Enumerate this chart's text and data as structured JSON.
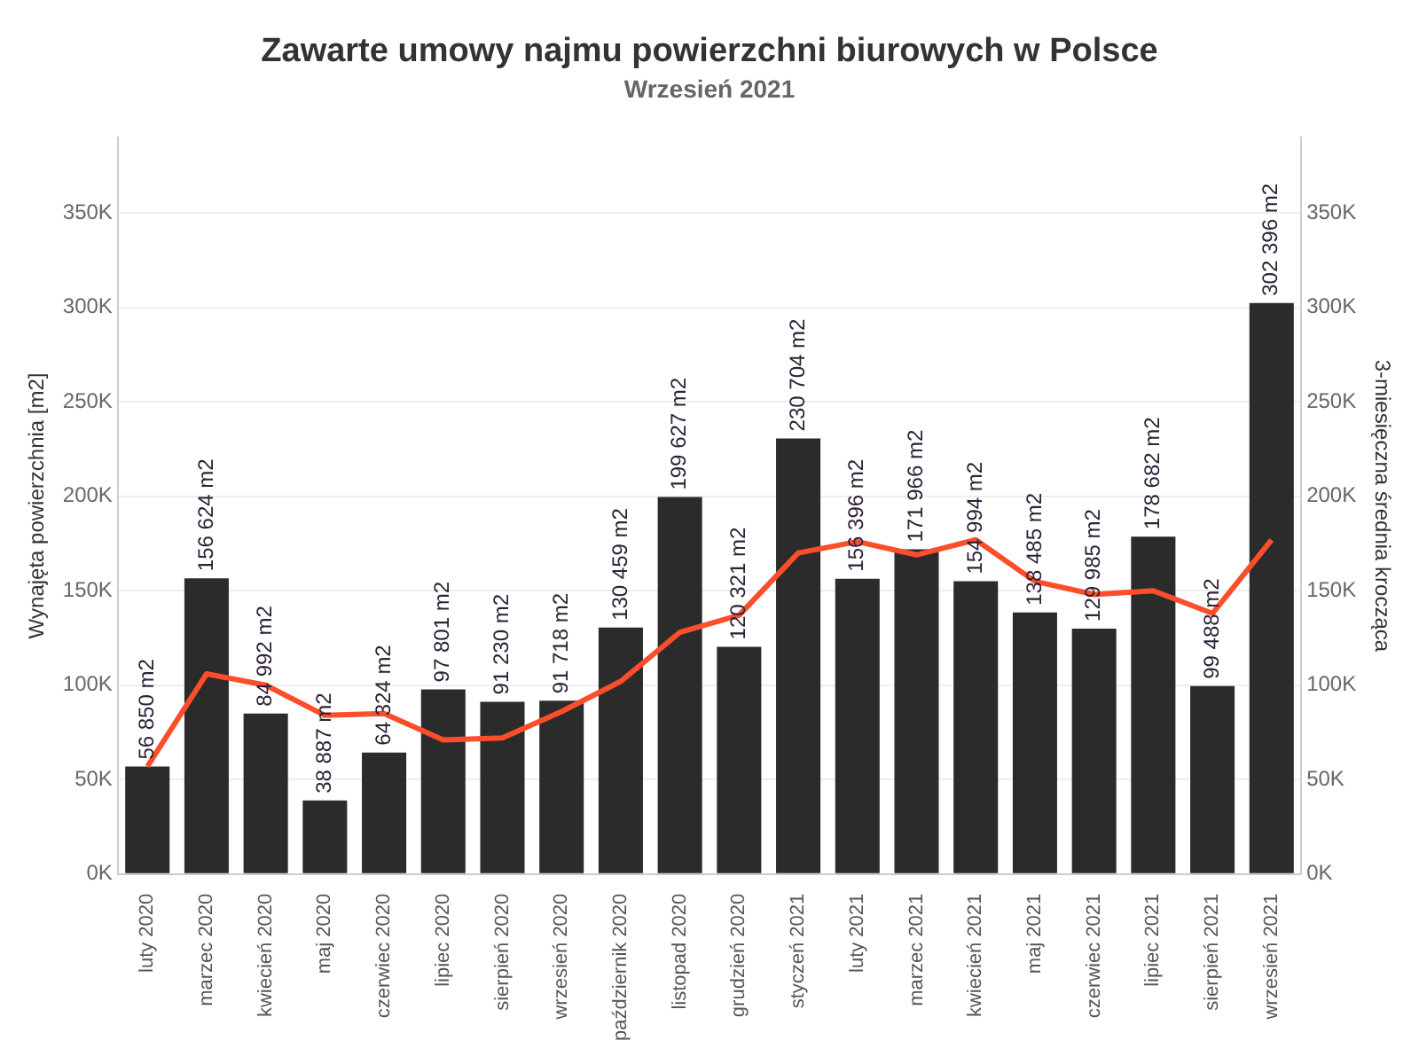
{
  "chart_data": {
    "type": "bar",
    "title": "Zawarte umowy najmu powierzchni biurowych w Polsce",
    "subtitle": "Wrzesień 2021",
    "ylabel": "Wynajęta powierzchnia [m2]",
    "y2label": "3-miesięczna średnia krocząca",
    "categories": [
      "luty 2020",
      "marzec 2020",
      "kwiecień 2020",
      "maj 2020",
      "czerwiec 2020",
      "lipiec 2020",
      "sierpień 2020",
      "wrzesień 2020",
      "październik 2020",
      "listopad 2020",
      "grudzień 2020",
      "styczeń 2021",
      "luty 2021",
      "marzec 2021",
      "kwiecień 2021",
      "maj 2021",
      "czerwiec 2021",
      "lipiec 2021",
      "sierpień 2021",
      "wrzesień 2021"
    ],
    "series": [
      {
        "color": "#2b2b2b",
        "values": [
          56850,
          156624,
          84992,
          38887,
          64324,
          97801,
          91230,
          91718,
          130459,
          199627,
          120321,
          230704,
          156396,
          171966,
          154994,
          138485,
          129985,
          178682,
          99488,
          302396
        ],
        "value_labels": [
          "56 850 m2",
          "156 624 m2",
          "84 992 m2",
          "38 887 m2",
          "64 324 m2",
          "97 801 m2",
          "91 230 m2",
          "91 718 m2",
          "130 459 m2",
          "199 627 m2",
          "120 321 m2",
          "230 704 m2",
          "156 396 m2",
          "171 966 m2",
          "154 994 m2",
          "138 485 m2",
          "129 985 m2",
          "178 682 m2",
          "99 488 m2",
          "302 396 m2"
        ]
      },
      {
        "type": "line",
        "axis": "y2",
        "color": "#fc4e2a",
        "marker": "none",
        "values": [
          57000,
          106000,
          100000,
          84000,
          85000,
          71000,
          72000,
          86000,
          102000,
          128000,
          137000,
          170000,
          176000,
          169000,
          177000,
          155000,
          148000,
          150000,
          138000,
          177000
        ]
      }
    ],
    "ylim": [
      0,
      390000
    ],
    "yticks": [
      {
        "value": 0,
        "label": "0K"
      },
      {
        "value": 50000,
        "label": "50K"
      },
      {
        "value": 100000,
        "label": "100K"
      },
      {
        "value": 150000,
        "label": "150K"
      },
      {
        "value": 200000,
        "label": "200K"
      },
      {
        "value": 250000,
        "label": "250K"
      },
      {
        "value": 300000,
        "label": "300K"
      },
      {
        "value": 350000,
        "label": "350K"
      }
    ],
    "y2lim": [
      0,
      390000
    ],
    "y2ticks": [
      {
        "value": 0,
        "label": "0K"
      },
      {
        "value": 50000,
        "label": "50K"
      },
      {
        "value": 100000,
        "label": "100K"
      },
      {
        "value": 150000,
        "label": "150K"
      },
      {
        "value": 200000,
        "label": "200K"
      },
      {
        "value": 250000,
        "label": "250K"
      },
      {
        "value": 300000,
        "label": "300K"
      },
      {
        "value": 350000,
        "label": "350K"
      }
    ],
    "grid": "y",
    "legend": false
  }
}
